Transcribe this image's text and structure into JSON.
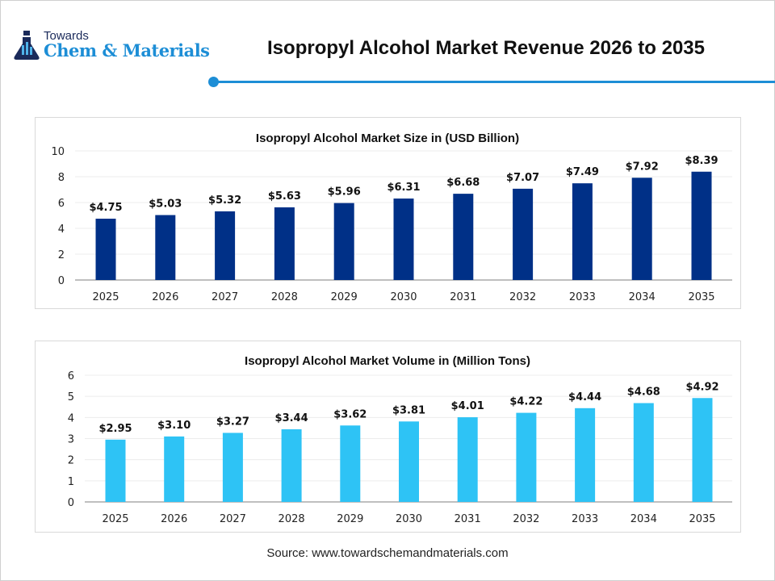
{
  "logo": {
    "line1": "Towards",
    "line2": "Chem & Materials"
  },
  "title": "Isopropyl Alcohol Market Revenue 2026 to 2035",
  "source": "Source: www.towardschemandmaterials.com",
  "colors": {
    "accent": "#1d8ed6",
    "bar1": "#003087",
    "bar2": "#2ec3f5"
  },
  "chart_data": [
    {
      "type": "bar",
      "title": "Isopropyl Alcohol Market Size in (USD Billion)",
      "categories": [
        "2025",
        "2026",
        "2027",
        "2028",
        "2029",
        "2030",
        "2031",
        "2032",
        "2033",
        "2034",
        "2035"
      ],
      "values": [
        4.75,
        5.03,
        5.32,
        5.63,
        5.96,
        6.31,
        6.68,
        7.07,
        7.49,
        7.92,
        8.39
      ],
      "labels": [
        "$4.75",
        "$5.03",
        "$5.32",
        "$5.63",
        "$5.96",
        "$6.31",
        "$6.68",
        "$7.07",
        "$7.49",
        "$7.92",
        "$8.39"
      ],
      "yticks": [
        "0",
        "2",
        "4",
        "6",
        "8",
        "10"
      ],
      "ylim": [
        0,
        10
      ],
      "grid": true,
      "color": "#003087"
    },
    {
      "type": "bar",
      "title": "Isopropyl Alcohol Market Volume in (Million Tons)",
      "categories": [
        "2025",
        "2026",
        "2027",
        "2028",
        "2029",
        "2030",
        "2031",
        "2032",
        "2033",
        "2034",
        "2035"
      ],
      "values": [
        2.95,
        3.1,
        3.27,
        3.44,
        3.62,
        3.81,
        4.01,
        4.22,
        4.44,
        4.68,
        4.92
      ],
      "labels": [
        "$2.95",
        "$3.10",
        "$3.27",
        "$3.44",
        "$3.62",
        "$3.81",
        "$4.01",
        "$4.22",
        "$4.44",
        "$4.68",
        "$4.92"
      ],
      "yticks": [
        "0",
        "1",
        "2",
        "3",
        "4",
        "5",
        "6"
      ],
      "ylim": [
        0,
        6
      ],
      "grid": true,
      "color": "#2ec3f5"
    }
  ]
}
